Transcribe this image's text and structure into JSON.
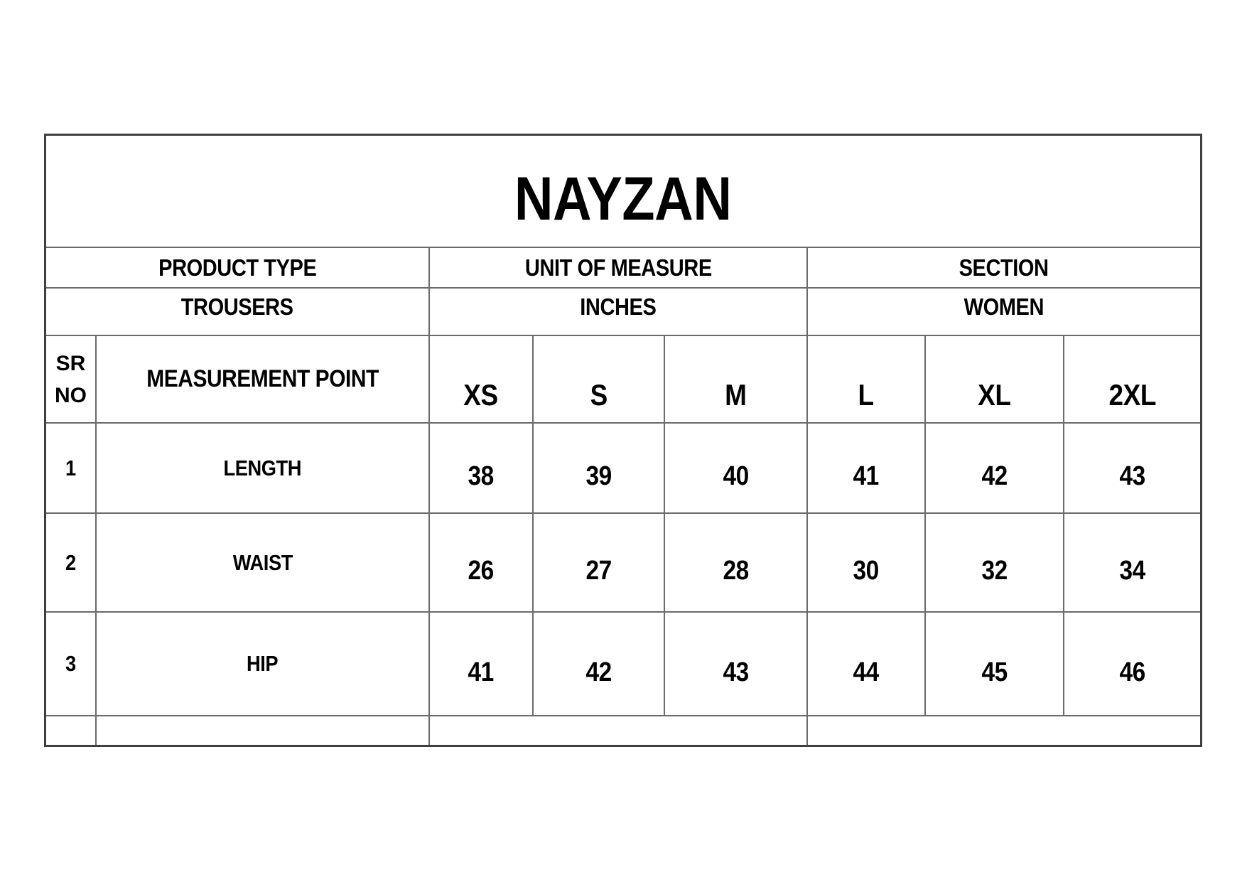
{
  "brand": {
    "title": "NAYZAN"
  },
  "meta": {
    "columns": [
      {
        "label": "PRODUCT TYPE",
        "value": "TROUSERS"
      },
      {
        "label": "UNIT OF MEASURE",
        "value": "INCHES"
      },
      {
        "label": "SECTION",
        "value": "WOMEN"
      }
    ]
  },
  "size_table": {
    "sr_no_label": "SR NO",
    "measurement_point_label": "MEASUREMENT POINT",
    "sizes": [
      "XS",
      "S",
      "M",
      "L",
      "XL",
      "2XL"
    ],
    "rows": [
      {
        "sr": "1",
        "point": "LENGTH",
        "values": [
          "38",
          "39",
          "40",
          "41",
          "42",
          "43"
        ]
      },
      {
        "sr": "2",
        "point": "WAIST",
        "values": [
          "26",
          "27",
          "28",
          "30",
          "32",
          "34"
        ]
      },
      {
        "sr": "3",
        "point": "HIP",
        "values": [
          "41",
          "42",
          "43",
          "44",
          "45",
          "46"
        ]
      }
    ]
  },
  "chart_data": {
    "type": "table",
    "title": "NAYZAN",
    "columns": [
      "SR NO",
      "MEASUREMENT POINT",
      "XS",
      "S",
      "M",
      "L",
      "XL",
      "2XL"
    ],
    "rows": [
      [
        "1",
        "LENGTH",
        "38",
        "39",
        "40",
        "41",
        "42",
        "43"
      ],
      [
        "2",
        "WAIST",
        "26",
        "27",
        "28",
        "30",
        "32",
        "34"
      ],
      [
        "3",
        "HIP",
        "41",
        "42",
        "43",
        "44",
        "45",
        "46"
      ]
    ],
    "header_info": {
      "PRODUCT TYPE": "TROUSERS",
      "UNIT OF MEASURE": "INCHES",
      "SECTION": "WOMEN"
    }
  },
  "colors": {
    "background": "#ffffff",
    "text": "#000000",
    "grid_line": "#6a6a6a",
    "outer_border": "#3f3f3f"
  }
}
